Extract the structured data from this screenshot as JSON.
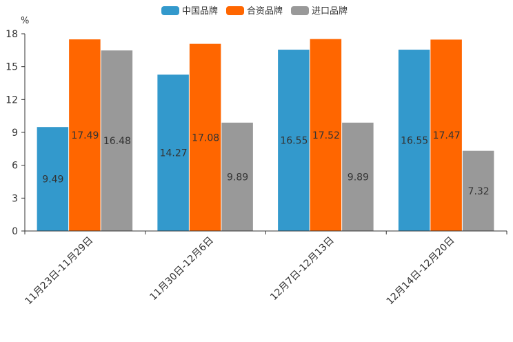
{
  "chart_data": {
    "type": "bar",
    "title": "",
    "xlabel": "",
    "ylabel": "%",
    "ylim": [
      0,
      18
    ],
    "yticks": [
      0,
      3,
      6,
      9,
      12,
      15,
      18
    ],
    "legend_position": "top-center",
    "grid": false,
    "categories": [
      "11月23日-11月29日",
      "11月30日-12月6日",
      "12月7日-12月13日",
      "12月14日-12月20日"
    ],
    "series": [
      {
        "name": "中国品牌",
        "color": "#3399CC",
        "values": [
          9.49,
          14.27,
          16.55,
          16.55
        ]
      },
      {
        "name": "合资品牌",
        "color": "#FF6600",
        "values": [
          17.49,
          17.08,
          17.52,
          17.47
        ]
      },
      {
        "name": "进口品牌",
        "color": "#999999",
        "values": [
          16.48,
          9.89,
          9.89,
          7.32
        ]
      }
    ]
  }
}
